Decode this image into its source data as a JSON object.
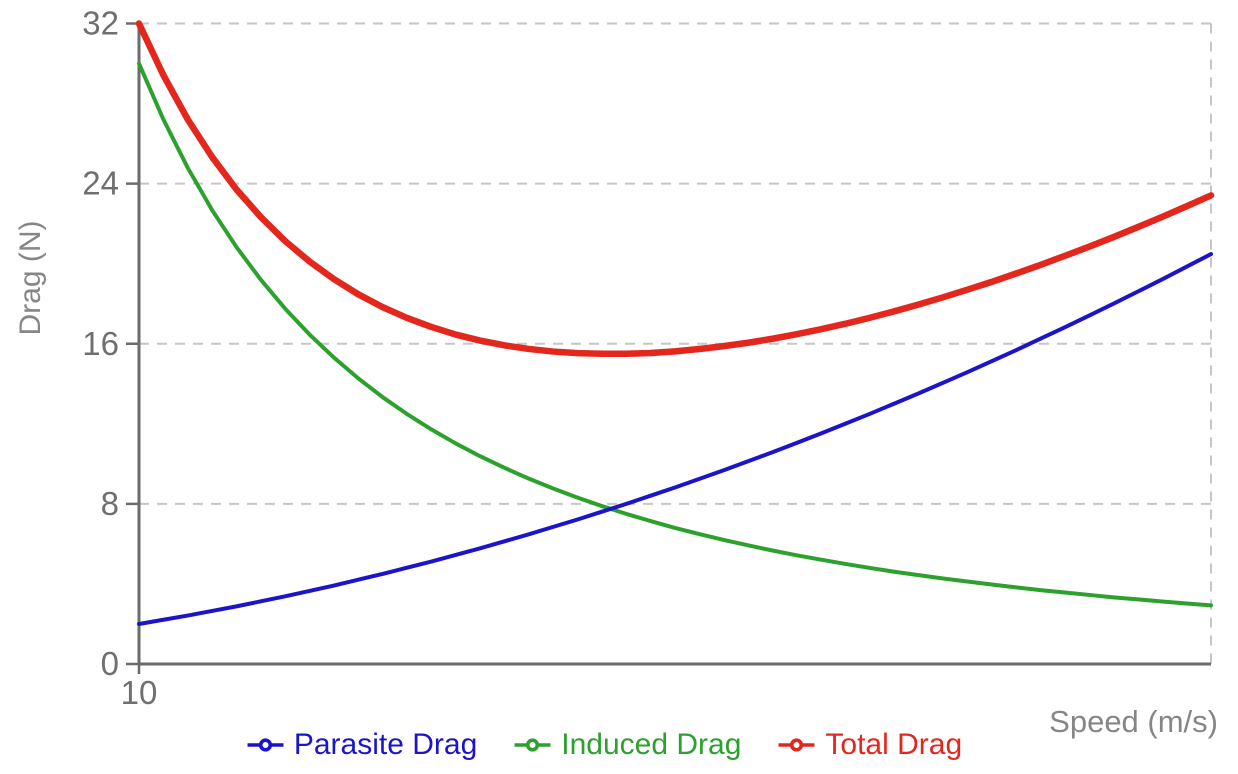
{
  "chart_data": {
    "type": "line",
    "title": "",
    "xlabel": "Speed (m/s)",
    "ylabel": "Drag (N)",
    "xlim": [
      10,
      32
    ],
    "ylim": [
      0,
      32
    ],
    "xticks": [
      10
    ],
    "yticks": [
      0,
      8,
      16,
      24,
      32
    ],
    "grid": {
      "horizontal_dashed": true,
      "right_edge_dashed": true,
      "vertical": false
    },
    "legend_position": "bottom-center",
    "axis_color": "#6b6b6b",
    "grid_color": "#c6c6c6",
    "tick_label_color": "#6f6f6f",
    "axis_title_color": "#868686",
    "x": [
      10,
      10.5,
      11,
      11.5,
      12,
      12.5,
      13,
      13.5,
      14,
      14.5,
      15,
      15.5,
      16,
      16.5,
      17,
      17.5,
      18,
      18.5,
      19,
      19.5,
      20,
      20.5,
      21,
      21.5,
      22,
      22.5,
      23,
      23.5,
      24,
      24.5,
      25,
      25.5,
      26,
      26.5,
      27,
      27.5,
      28,
      28.5,
      29,
      29.5,
      30,
      30.5,
      31,
      31.5,
      32
    ],
    "series": [
      {
        "name": "Parasite Drag",
        "color": "#1c14c8",
        "width": 4,
        "values": [
          2,
          2.21,
          2.42,
          2.65,
          2.88,
          3.13,
          3.38,
          3.65,
          3.92,
          4.21,
          4.5,
          4.81,
          5.12,
          5.45,
          5.78,
          6.13,
          6.48,
          6.85,
          7.22,
          7.61,
          8,
          8.41,
          8.82,
          9.25,
          9.68,
          10.13,
          10.58,
          11.05,
          11.52,
          12.01,
          12.5,
          13.01,
          13.52,
          14.05,
          14.58,
          15.13,
          15.68,
          16.25,
          16.82,
          17.41,
          18,
          18.61,
          19.22,
          19.85,
          20.48
        ]
      },
      {
        "name": "Induced Drag",
        "color": "#2da12d",
        "width": 4,
        "values": [
          30,
          27.21,
          24.79,
          22.68,
          20.83,
          19.2,
          17.75,
          16.46,
          15.31,
          14.27,
          13.33,
          12.49,
          11.72,
          11.02,
          10.38,
          9.8,
          9.26,
          8.77,
          8.31,
          7.89,
          7.5,
          7.14,
          6.8,
          6.49,
          6.2,
          5.93,
          5.67,
          5.43,
          5.21,
          5,
          4.8,
          4.61,
          4.44,
          4.27,
          4.12,
          3.97,
          3.83,
          3.69,
          3.57,
          3.45,
          3.33,
          3.23,
          3.12,
          3.02,
          2.93
        ]
      },
      {
        "name": "Total Drag",
        "color": "#e3271d",
        "width": 6.5,
        "values": [
          32,
          29.42,
          27.21,
          25.33,
          23.71,
          22.33,
          21.13,
          20.11,
          19.23,
          18.47,
          17.83,
          17.29,
          16.84,
          16.46,
          16.16,
          15.92,
          15.74,
          15.61,
          15.53,
          15.5,
          15.5,
          15.54,
          15.62,
          15.74,
          15.88,
          16.05,
          16.25,
          16.48,
          16.73,
          17,
          17.3,
          17.62,
          17.96,
          18.32,
          18.7,
          19.09,
          19.51,
          19.94,
          20.39,
          20.85,
          21.33,
          21.83,
          22.34,
          22.87,
          23.41
        ]
      }
    ]
  }
}
